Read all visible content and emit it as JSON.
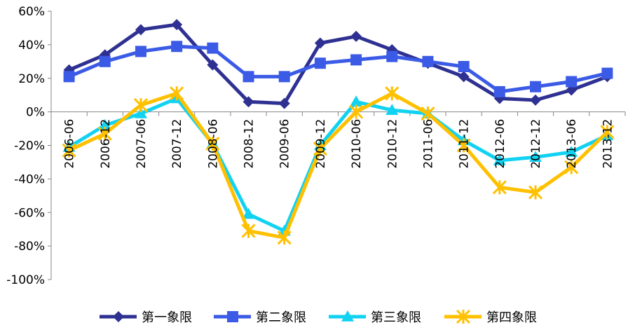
{
  "chart_data": {
    "type": "line",
    "title": "",
    "xlabel": "",
    "ylabel": "",
    "categories": [
      "2006-06",
      "2006-12",
      "2007-06",
      "2007-12",
      "2008-06",
      "2008-12",
      "2009-06",
      "2009-12",
      "2010-06",
      "2010-12",
      "2011-06",
      "2011-12",
      "2012-06",
      "2012-12",
      "2013-06",
      "2013-12"
    ],
    "ylim": [
      -100,
      60
    ],
    "ytick_step": 20,
    "y_unit": "%",
    "grid": false,
    "legend_position": "bottom",
    "series": [
      {
        "name": "第一象限",
        "color": "#2E3192",
        "marker": "diamond",
        "values": [
          25,
          34,
          49,
          52,
          28,
          6,
          5,
          41,
          45,
          37,
          29,
          21,
          8,
          7,
          13,
          21
        ]
      },
      {
        "name": "第二象限",
        "color": "#3B5BE6",
        "marker": "square",
        "values": [
          21,
          30,
          36,
          39,
          38,
          21,
          21,
          29,
          31,
          33,
          30,
          27,
          12,
          15,
          18,
          23
        ]
      },
      {
        "name": "第三象限",
        "color": "#12D2F2",
        "marker": "triangle",
        "values": [
          -21,
          -8,
          -1,
          8,
          -19,
          -61,
          -71,
          -20,
          6,
          1,
          -1,
          -17,
          -29,
          -27,
          -24,
          -14
        ]
      },
      {
        "name": "第四象限",
        "color": "#FFC000",
        "marker": "star",
        "values": [
          -23,
          -13,
          4,
          11,
          -19,
          -71,
          -75,
          -22,
          0,
          11,
          -1,
          -20,
          -45,
          -48,
          -33,
          -12
        ]
      }
    ]
  }
}
